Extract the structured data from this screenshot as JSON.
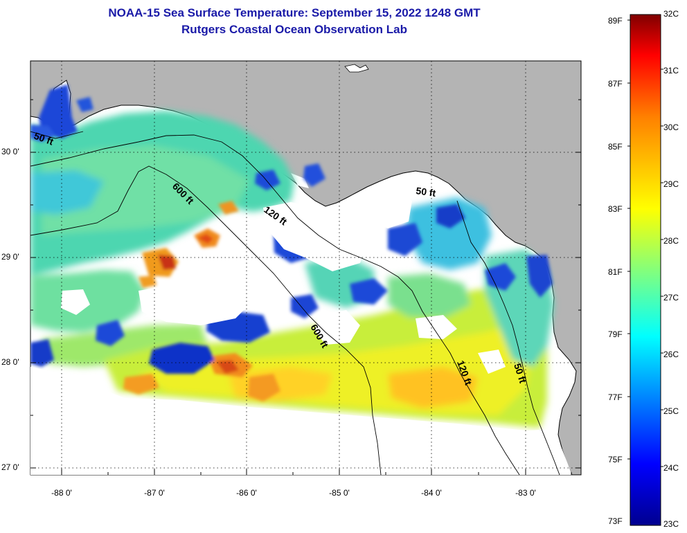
{
  "header": {
    "title": "NOAA-15 Sea Surface Temperature:  September 15, 2022 1248 GMT",
    "subtitle": "Rutgers Coastal Ocean Observation Lab"
  },
  "map": {
    "lat_ticks": [
      "30 0'",
      "29 0'",
      "28 0'",
      "27 0'"
    ],
    "lon_ticks": [
      "-88 0'",
      "-87 0'",
      "-86 0'",
      "-85 0'",
      "-84 0'",
      "-83 0'"
    ],
    "contours": {
      "c50_west": "50 ft",
      "c600_north": "600 ft",
      "c120_north": "120 ft",
      "c50_east": "50 ft",
      "c600_south": "600 ft",
      "c120_south": "120 ft",
      "c50_south": "50 ft"
    }
  },
  "colorbar": {
    "fahrenheit": [
      "89F",
      "87F",
      "85F",
      "83F",
      "81F",
      "79F",
      "77F",
      "75F",
      "73F"
    ],
    "celsius": [
      "32C",
      "31C",
      "30C",
      "29C",
      "28C",
      "27C",
      "26C",
      "25C",
      "24C",
      "23C"
    ],
    "colors": {
      "high": "#800000",
      "red": "#ff0000",
      "orange": "#ff8000",
      "yellow": "#ffff00",
      "cyan": "#00ffff",
      "blue": "#0000ff",
      "low": "#00008f"
    }
  },
  "colors": {
    "land": "#b4b4b4",
    "no_data": "#ffffff",
    "title": "#1a1aa8"
  }
}
